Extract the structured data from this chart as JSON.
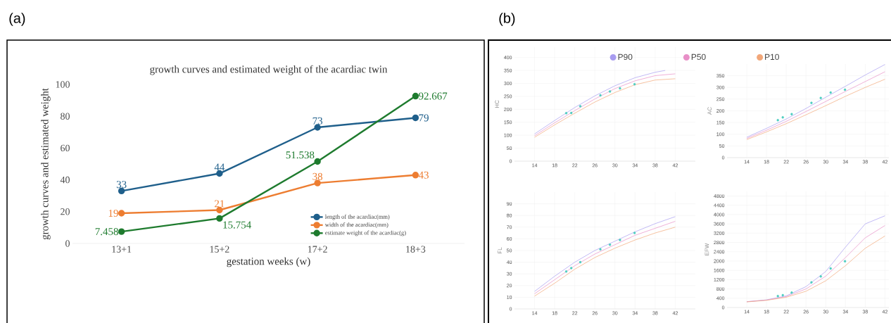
{
  "chart_data": [
    {
      "type": "line",
      "title": "growth curves and estimated weight of the acardiac twin",
      "xlabel": "gestation weeks (w)",
      "ylabel": "growth curves and estimated weight",
      "categories": [
        "13+1",
        "15+2",
        "17+2",
        "18+3"
      ],
      "ylim": [
        0,
        100
      ],
      "yticks": [
        0,
        20,
        40,
        60,
        80,
        100
      ],
      "marker": "circle",
      "data_labels": true,
      "legend": "bottom right",
      "annotations": [
        "(a)"
      ],
      "series": [
        {
          "name": "length of the acardiac(mm)",
          "color": "#1f5f8b",
          "values": [
            33,
            44,
            73,
            79
          ]
        },
        {
          "name": "width of the acardiac(mm)",
          "color": "#ed7d31",
          "values": [
            19,
            21,
            38,
            43
          ]
        },
        {
          "name": "estimate weight of the acardiac(g)",
          "color": "#1e7b2e",
          "values": [
            7.458,
            15.754,
            51.538,
            92.667
          ]
        }
      ]
    },
    {
      "type": "line",
      "ylabel": "HC",
      "xlim": [
        10,
        46
      ],
      "ylim": [
        0,
        440
      ],
      "xticks": [
        14,
        18,
        22,
        26,
        30,
        34,
        38,
        42
      ],
      "yticks": [
        0,
        50,
        100,
        150,
        200,
        250,
        300,
        350,
        400
      ],
      "grid": true,
      "legend": "top",
      "annotations": [
        "(b)"
      ],
      "series": [
        {
          "name": "P90",
          "color": "#a89cf0",
          "x": [
            14,
            18,
            22,
            26,
            30,
            34,
            38,
            40
          ],
          "values": [
            105,
            157,
            207,
            252,
            291,
            322,
            343,
            350
          ]
        },
        {
          "name": "P50",
          "color": "#e88fc7",
          "x": [
            14,
            18,
            22,
            26,
            30,
            34,
            38,
            42
          ],
          "values": [
            98,
            148,
            195,
            240,
            280,
            310,
            330,
            337
          ]
        },
        {
          "name": "P10",
          "color": "#f2a779",
          "x": [
            14,
            18,
            22,
            26,
            30,
            34,
            38,
            42
          ],
          "values": [
            92,
            140,
            185,
            228,
            265,
            295,
            313,
            318
          ]
        },
        {
          "type": "scatter",
          "color": "#4ecdc0",
          "x": [
            20.3,
            21.3,
            23.1,
            27.1,
            29.0,
            31.0,
            33.9
          ],
          "values": [
            185,
            186,
            212,
            254,
            269,
            281,
            297
          ]
        }
      ]
    },
    {
      "type": "line",
      "ylabel": "AC",
      "xlim": [
        10,
        42.8
      ],
      "ylim": [
        0,
        400
      ],
      "xticks": [
        14,
        18,
        22,
        26,
        30,
        34,
        38,
        42
      ],
      "yticks": [
        0,
        50,
        100,
        150,
        200,
        250,
        300,
        350
      ],
      "grid": true,
      "series": [
        {
          "color": "#a89cf0",
          "x": [
            14,
            18,
            22,
            26,
            30,
            34,
            38,
            42
          ],
          "values": [
            87,
            125,
            165,
            210,
            258,
            305,
            353,
            398
          ]
        },
        {
          "color": "#e88fc7",
          "x": [
            14,
            18,
            22,
            26,
            30,
            34,
            38,
            42
          ],
          "values": [
            82,
            117,
            155,
            197,
            240,
            283,
            325,
            367
          ]
        },
        {
          "color": "#f2a779",
          "x": [
            14,
            18,
            22,
            26,
            30,
            34,
            38,
            42
          ],
          "values": [
            77,
            110,
            145,
            183,
            222,
            262,
            300,
            335
          ]
        },
        {
          "type": "scatter",
          "color": "#4ecdc0",
          "x": [
            20.3,
            21.3,
            23.1,
            27.1,
            29.0,
            31.0,
            33.9
          ],
          "values": [
            160,
            172,
            186,
            234,
            255,
            278,
            290
          ]
        }
      ]
    },
    {
      "type": "line",
      "ylabel": "FL",
      "xlim": [
        10,
        46
      ],
      "ylim": [
        0,
        100
      ],
      "xticks": [
        14,
        18,
        22,
        26,
        30,
        34,
        38,
        42
      ],
      "yticks": [
        0,
        10,
        20,
        30,
        40,
        50,
        60,
        70,
        80,
        90
      ],
      "grid": true,
      "series": [
        {
          "color": "#a89cf0",
          "x": [
            14,
            18,
            22,
            26,
            30,
            34,
            38,
            42
          ],
          "values": [
            15,
            28,
            40,
            50,
            58,
            66,
            73,
            79
          ]
        },
        {
          "color": "#e88fc7",
          "x": [
            14,
            18,
            22,
            26,
            30,
            34,
            38,
            42
          ],
          "values": [
            13,
            25,
            37,
            47,
            55,
            63,
            69,
            75
          ]
        },
        {
          "color": "#f2a779",
          "x": [
            14,
            18,
            22,
            26,
            30,
            34,
            38,
            42
          ],
          "values": [
            11,
            22,
            34,
            44,
            52,
            59,
            65,
            70
          ]
        },
        {
          "type": "scatter",
          "color": "#4ecdc0",
          "x": [
            20.3,
            21.3,
            23.1,
            27.1,
            29.0,
            31.0,
            33.9
          ],
          "values": [
            32,
            35,
            40,
            51,
            55,
            59,
            65
          ]
        }
      ]
    },
    {
      "type": "line",
      "ylabel": "EFW",
      "xlim": [
        10,
        42.8
      ],
      "ylim": [
        0,
        5000
      ],
      "xticks": [
        14,
        18,
        22,
        26,
        30,
        34,
        38,
        42
      ],
      "yticks": [
        0,
        400,
        800,
        1200,
        1600,
        2000,
        2400,
        2800,
        3200,
        3600,
        4000,
        4400,
        4800
      ],
      "grid": true,
      "series": [
        {
          "color": "#a89cf0",
          "x": [
            14,
            18,
            22,
            26,
            30,
            34,
            38,
            42
          ],
          "values": [
            250,
            330,
            500,
            900,
            1550,
            2600,
            3600,
            3950
          ]
        },
        {
          "color": "#e88fc7",
          "x": [
            14,
            18,
            22,
            26,
            30,
            34,
            38,
            42
          ],
          "values": [
            250,
            320,
            470,
            800,
            1350,
            2150,
            3000,
            3530
          ]
        },
        {
          "color": "#f2a779",
          "x": [
            14,
            18,
            22,
            26,
            30,
            34,
            38,
            42
          ],
          "values": [
            240,
            310,
            440,
            700,
            1150,
            1800,
            2550,
            3080
          ]
        },
        {
          "type": "scatter",
          "color": "#4ecdc0",
          "x": [
            20.3,
            21.3,
            23.1,
            27.1,
            29.0,
            31.0,
            33.9
          ],
          "values": [
            490,
            530,
            640,
            1080,
            1340,
            1680,
            1990
          ]
        }
      ]
    }
  ]
}
